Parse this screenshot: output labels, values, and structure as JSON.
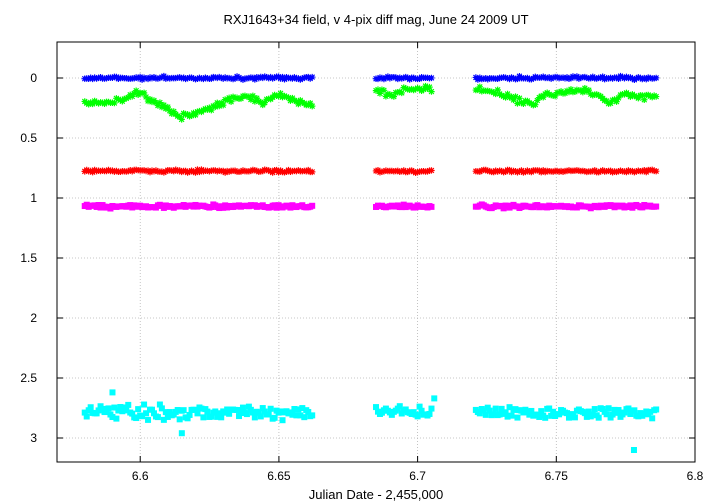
{
  "chart_data": {
    "type": "scatter",
    "title": "RXJ1643+34 field, v 4-pix diff mag, June 24  2009 UT",
    "xlabel": "Julian Date - 2,455,000",
    "ylabel": "",
    "xlim": [
      6.57,
      6.8
    ],
    "ylim": [
      3.2,
      -0.3
    ],
    "y_inverted": true,
    "grid": true,
    "legend": "none",
    "x_ticks": [
      {
        "value": 6.6,
        "label": "6.6"
      },
      {
        "value": 6.65,
        "label": "6.65"
      },
      {
        "value": 6.7,
        "label": "6.7"
      },
      {
        "value": 6.75,
        "label": "6.75"
      },
      {
        "value": 6.8,
        "label": "6.8"
      }
    ],
    "y_ticks": [
      {
        "value": 0,
        "label": "0"
      },
      {
        "value": 0.5,
        "label": "0.5"
      },
      {
        "value": 1,
        "label": "1"
      },
      {
        "value": 1.5,
        "label": "1.5"
      },
      {
        "value": 2,
        "label": "2"
      },
      {
        "value": 2.5,
        "label": "2.5"
      },
      {
        "value": 3,
        "label": "3"
      }
    ],
    "time_segments": [
      [
        6.58,
        6.662
      ],
      [
        6.685,
        6.705
      ],
      [
        6.721,
        6.786
      ]
    ],
    "series": [
      {
        "color": "#0000ff",
        "marker": "star",
        "mean": 0.0,
        "scatter": 0.012,
        "shape": [],
        "outliers": []
      },
      {
        "color": "#00ff00",
        "marker": "star",
        "mean": 0.18,
        "scatter": 0.025,
        "shape": [
          [
            6.58,
            0.21
          ],
          [
            6.59,
            0.2
          ],
          [
            6.596,
            0.16
          ],
          [
            6.6,
            0.12
          ],
          [
            6.605,
            0.2
          ],
          [
            6.61,
            0.25
          ],
          [
            6.614,
            0.33
          ],
          [
            6.62,
            0.3
          ],
          [
            6.626,
            0.24
          ],
          [
            6.633,
            0.18
          ],
          [
            6.64,
            0.16
          ],
          [
            6.645,
            0.2
          ],
          [
            6.65,
            0.14
          ],
          [
            6.655,
            0.18
          ],
          [
            6.662,
            0.22
          ],
          [
            6.685,
            0.1
          ],
          [
            6.69,
            0.14
          ],
          [
            6.695,
            0.1
          ],
          [
            6.705,
            0.09
          ],
          [
            6.721,
            0.1
          ],
          [
            6.727,
            0.12
          ],
          [
            6.733,
            0.15
          ],
          [
            6.738,
            0.2
          ],
          [
            6.742,
            0.22
          ],
          [
            6.746,
            0.14
          ],
          [
            6.752,
            0.12
          ],
          [
            6.76,
            0.1
          ],
          [
            6.765,
            0.16
          ],
          [
            6.77,
            0.2
          ],
          [
            6.774,
            0.13
          ],
          [
            6.78,
            0.15
          ],
          [
            6.786,
            0.16
          ]
        ],
        "outliers": []
      },
      {
        "color": "#ff0000",
        "marker": "star",
        "mean": 0.775,
        "scatter": 0.012,
        "shape": [],
        "outliers": []
      },
      {
        "color": "#ff00ff",
        "marker": "square",
        "mean": 1.07,
        "scatter": 0.014,
        "shape": [],
        "outliers": []
      },
      {
        "color": "#00ffff",
        "marker": "square",
        "mean": 2.79,
        "scatter": 0.055,
        "shape": [],
        "outliers": [
          [
            6.778,
            3.1
          ],
          [
            6.615,
            2.96
          ],
          [
            6.706,
            2.67
          ],
          [
            6.59,
            2.62
          ]
        ]
      }
    ]
  }
}
